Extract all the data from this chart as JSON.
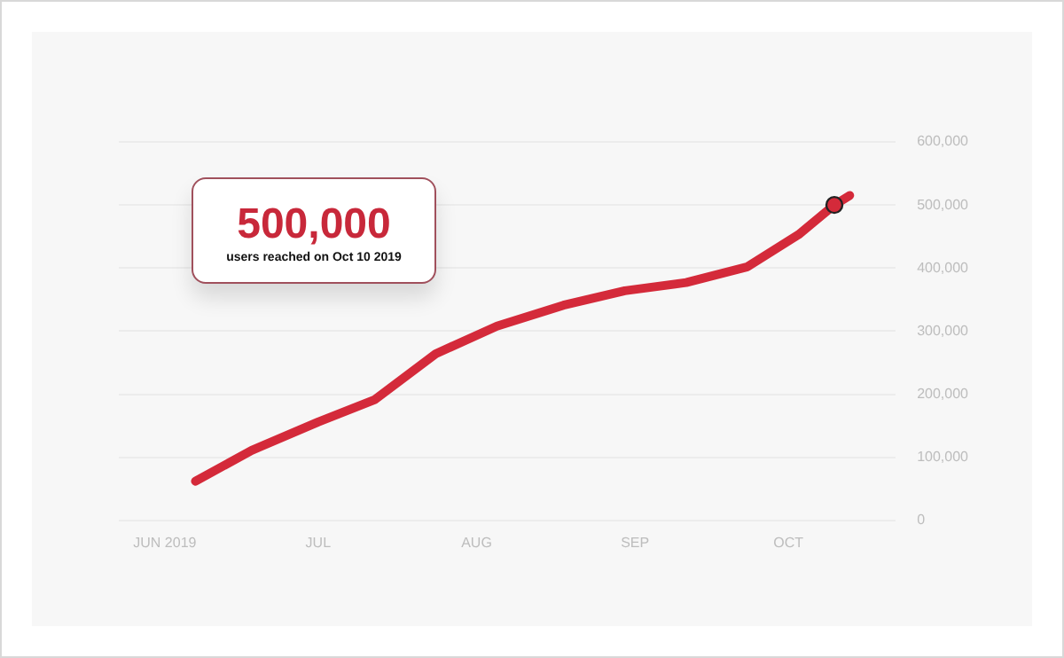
{
  "chart_data": {
    "type": "line",
    "x": [
      "2019-06-07",
      "2019-06-18",
      "2019-07-01",
      "2019-07-12",
      "2019-07-24",
      "2019-08-05",
      "2019-08-18",
      "2019-08-30",
      "2019-09-11",
      "2019-09-23",
      "2019-10-03",
      "2019-10-10",
      "2019-10-13"
    ],
    "series": [
      {
        "color": "#d42a3a",
        "values": [
          62000,
          111000,
          156000,
          191000,
          264000,
          308000,
          341000,
          364000,
          377000,
          402000,
          453000,
          500000,
          515000
        ],
        "marker": "none",
        "line_style": "solid"
      },
      {
        "type": "scatter",
        "color": "#d42a3a",
        "x": [
          "2019-10-10"
        ],
        "values": [
          500000
        ],
        "marker": "circle"
      }
    ],
    "xlim": [
      "2019-05-23",
      "2019-10-22"
    ],
    "xticks": [
      {
        "value": "2019-06-01",
        "label": "JUN 2019"
      },
      {
        "value": "2019-07-01",
        "label": "JUL"
      },
      {
        "value": "2019-08-01",
        "label": "AUG"
      },
      {
        "value": "2019-09-01",
        "label": "SEP"
      },
      {
        "value": "2019-10-01",
        "label": "OCT"
      }
    ],
    "ylim": [
      0,
      600000
    ],
    "yticks": [
      {
        "value": 0,
        "label": "0"
      },
      {
        "value": 100000,
        "label": "100,000"
      },
      {
        "value": 200000,
        "label": "200,000"
      },
      {
        "value": 300000,
        "label": "300,000"
      },
      {
        "value": 400000,
        "label": "400,000"
      },
      {
        "value": 500000,
        "label": "500,000"
      },
      {
        "value": 600000,
        "label": "600,000"
      }
    ],
    "grid": "y",
    "legend": false,
    "annotations": [
      "500,000",
      "users reached on Oct 10 2019"
    ]
  }
}
